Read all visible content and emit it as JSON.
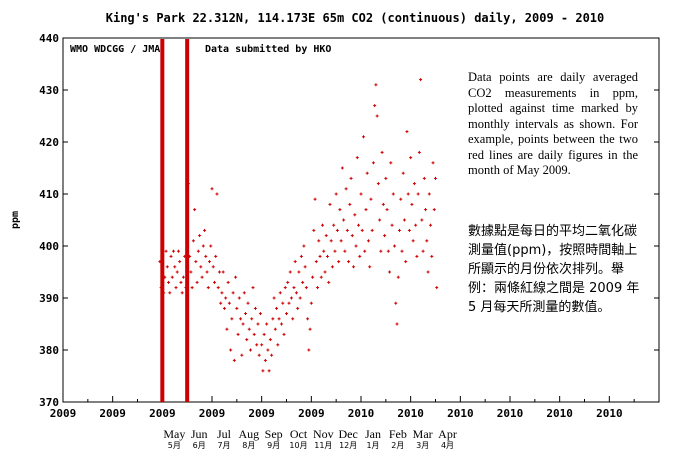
{
  "chart_data": {
    "type": "scatter",
    "title": "King's Park 22.312N, 114.173E 65m     CO2 (continuous)  daily, 2009 - 2010",
    "subtitle_left": "WMO WDCGG / JMA",
    "subtitle_right": "Data submitted by HKO",
    "ylabel": "ppm",
    "ylim": [
      370,
      440
    ],
    "yticks": [
      370,
      380,
      390,
      400,
      410,
      420,
      430,
      440
    ],
    "xlim": [
      "2009-01",
      "2011-01"
    ],
    "xtick_labels": [
      "2009",
      "2009",
      "2009",
      "2009",
      "2009",
      "2009",
      "2010",
      "2010",
      "2010",
      "2010",
      "2010",
      "2010"
    ],
    "month_labels": [
      {
        "en": "May",
        "zh": "5月",
        "t": 4.0
      },
      {
        "en": "Jun",
        "zh": "6月",
        "t": 5.0
      },
      {
        "en": "Jul",
        "zh": "7月",
        "t": 6.0
      },
      {
        "en": "Aug",
        "zh": "8月",
        "t": 7.0
      },
      {
        "en": "Sep",
        "zh": "9月",
        "t": 8.0
      },
      {
        "en": "Oct",
        "zh": "10月",
        "t": 9.0
      },
      {
        "en": "Nov",
        "zh": "11月",
        "t": 10.0
      },
      {
        "en": "Dec",
        "zh": "12月",
        "t": 11.0
      },
      {
        "en": "Jan",
        "zh": "1月",
        "t": 12.0
      },
      {
        "en": "Feb",
        "zh": "2月",
        "t": 13.0
      },
      {
        "en": "Mar",
        "zh": "3月",
        "t": 14.0
      },
      {
        "en": "Apr",
        "zh": "4月",
        "t": 15.0
      }
    ],
    "highlight_lines": [
      4.0,
      5.0
    ],
    "grid": false,
    "marker_color": "#cc0000",
    "line_color": "#cc0000",
    "series": [
      {
        "points": [
          [
            3.9,
            397
          ],
          [
            3.95,
            392
          ],
          [
            4.0,
            395
          ],
          [
            4.05,
            391
          ],
          [
            4.1,
            394
          ],
          [
            4.15,
            399
          ],
          [
            4.2,
            396
          ],
          [
            4.25,
            393
          ],
          [
            4.3,
            391
          ],
          [
            4.35,
            398
          ],
          [
            4.4,
            394
          ],
          [
            4.45,
            399
          ],
          [
            4.5,
            396
          ],
          [
            4.55,
            392
          ],
          [
            4.6,
            395
          ],
          [
            4.65,
            399
          ],
          [
            4.7,
            397
          ],
          [
            4.75,
            393
          ],
          [
            4.8,
            391
          ],
          [
            4.85,
            394
          ],
          [
            4.9,
            398
          ],
          [
            4.95,
            392
          ],
          [
            5.0,
            405
          ],
          [
            5.05,
            412
          ],
          [
            5.1,
            398
          ],
          [
            5.15,
            395
          ],
          [
            5.2,
            392
          ],
          [
            5.25,
            401
          ],
          [
            5.3,
            407
          ],
          [
            5.35,
            397
          ],
          [
            5.4,
            393
          ],
          [
            5.45,
            399
          ],
          [
            5.5,
            402
          ],
          [
            5.55,
            396
          ],
          [
            5.6,
            394
          ],
          [
            5.65,
            400
          ],
          [
            5.7,
            403
          ],
          [
            5.75,
            398
          ],
          [
            5.8,
            395
          ],
          [
            5.85,
            392
          ],
          [
            5.9,
            397
          ],
          [
            5.95,
            400
          ],
          [
            6.0,
            411
          ],
          [
            6.05,
            396
          ],
          [
            6.1,
            393
          ],
          [
            6.15,
            398
          ],
          [
            6.2,
            410
          ],
          [
            6.25,
            392
          ],
          [
            6.3,
            395
          ],
          [
            6.35,
            389
          ],
          [
            6.4,
            391
          ],
          [
            6.45,
            395
          ],
          [
            6.5,
            388
          ],
          [
            6.55,
            390
          ],
          [
            6.6,
            384
          ],
          [
            6.65,
            393
          ],
          [
            6.7,
            389
          ],
          [
            6.75,
            380
          ],
          [
            6.8,
            386
          ],
          [
            6.85,
            391
          ],
          [
            6.9,
            378
          ],
          [
            6.95,
            394
          ],
          [
            7.0,
            388
          ],
          [
            7.05,
            383
          ],
          [
            7.1,
            390
          ],
          [
            7.15,
            386
          ],
          [
            7.2,
            379
          ],
          [
            7.25,
            385
          ],
          [
            7.3,
            391
          ],
          [
            7.35,
            387
          ],
          [
            7.4,
            382
          ],
          [
            7.45,
            389
          ],
          [
            7.5,
            384
          ],
          [
            7.55,
            380
          ],
          [
            7.6,
            386
          ],
          [
            7.65,
            392
          ],
          [
            7.7,
            383
          ],
          [
            7.75,
            388
          ],
          [
            7.8,
            381
          ],
          [
            7.85,
            385
          ],
          [
            7.9,
            379
          ],
          [
            7.95,
            387
          ],
          [
            8.0,
            381
          ],
          [
            8.05,
            376
          ],
          [
            8.1,
            383
          ],
          [
            8.15,
            378
          ],
          [
            8.2,
            385
          ],
          [
            8.25,
            380
          ],
          [
            8.3,
            376
          ],
          [
            8.35,
            382
          ],
          [
            8.4,
            379
          ],
          [
            8.45,
            386
          ],
          [
            8.5,
            390
          ],
          [
            8.55,
            384
          ],
          [
            8.6,
            388
          ],
          [
            8.65,
            381
          ],
          [
            8.7,
            386
          ],
          [
            8.75,
            391
          ],
          [
            8.8,
            385
          ],
          [
            8.85,
            389
          ],
          [
            8.9,
            383
          ],
          [
            8.95,
            392
          ],
          [
            9.0,
            387
          ],
          [
            9.05,
            393
          ],
          [
            9.1,
            389
          ],
          [
            9.15,
            395
          ],
          [
            9.2,
            390
          ],
          [
            9.25,
            386
          ],
          [
            9.3,
            392
          ],
          [
            9.35,
            397
          ],
          [
            9.4,
            391
          ],
          [
            9.45,
            388
          ],
          [
            9.5,
            395
          ],
          [
            9.55,
            390
          ],
          [
            9.6,
            398
          ],
          [
            9.65,
            393
          ],
          [
            9.7,
            400
          ],
          [
            9.75,
            396
          ],
          [
            9.8,
            392
          ],
          [
            9.85,
            386
          ],
          [
            9.9,
            380
          ],
          [
            9.95,
            384
          ],
          [
            10.0,
            389
          ],
          [
            10.05,
            394
          ],
          [
            10.1,
            403
          ],
          [
            10.15,
            409
          ],
          [
            10.2,
            397
          ],
          [
            10.25,
            392
          ],
          [
            10.3,
            401
          ],
          [
            10.35,
            398
          ],
          [
            10.4,
            394
          ],
          [
            10.45,
            404
          ],
          [
            10.5,
            399
          ],
          [
            10.55,
            395
          ],
          [
            10.6,
            402
          ],
          [
            10.65,
            398
          ],
          [
            10.7,
            393
          ],
          [
            10.75,
            408
          ],
          [
            10.8,
            401
          ],
          [
            10.85,
            396
          ],
          [
            10.9,
            404
          ],
          [
            10.95,
            399
          ],
          [
            11.0,
            410
          ],
          [
            11.05,
            403
          ],
          [
            11.1,
            397
          ],
          [
            11.15,
            407
          ],
          [
            11.2,
            401
          ],
          [
            11.25,
            415
          ],
          [
            11.3,
            405
          ],
          [
            11.35,
            399
          ],
          [
            11.4,
            411
          ],
          [
            11.45,
            403
          ],
          [
            11.5,
            397
          ],
          [
            11.55,
            408
          ],
          [
            11.6,
            413
          ],
          [
            11.65,
            402
          ],
          [
            11.7,
            396
          ],
          [
            11.75,
            406
          ],
          [
            11.8,
            400
          ],
          [
            11.85,
            417
          ],
          [
            11.9,
            404
          ],
          [
            11.95,
            398
          ],
          [
            12.0,
            410
          ],
          [
            12.05,
            403
          ],
          [
            12.1,
            421
          ],
          [
            12.15,
            399
          ],
          [
            12.2,
            407
          ],
          [
            12.25,
            414
          ],
          [
            12.3,
            401
          ],
          [
            12.35,
            396
          ],
          [
            12.4,
            409
          ],
          [
            12.45,
            403
          ],
          [
            12.5,
            416
          ],
          [
            12.55,
            427
          ],
          [
            12.6,
            431
          ],
          [
            12.65,
            425
          ],
          [
            12.7,
            412
          ],
          [
            12.75,
            405
          ],
          [
            12.8,
            399
          ],
          [
            12.85,
            418
          ],
          [
            12.9,
            408
          ],
          [
            12.95,
            402
          ],
          [
            13.0,
            413
          ],
          [
            13.05,
            407
          ],
          [
            13.1,
            399
          ],
          [
            13.15,
            395
          ],
          [
            13.2,
            416
          ],
          [
            13.25,
            404
          ],
          [
            13.3,
            410
          ],
          [
            13.35,
            400
          ],
          [
            13.4,
            389
          ],
          [
            13.45,
            385
          ],
          [
            13.5,
            394
          ],
          [
            13.55,
            403
          ],
          [
            13.6,
            409
          ],
          [
            13.65,
            399
          ],
          [
            13.7,
            414
          ],
          [
            13.75,
            405
          ],
          [
            13.8,
            397
          ],
          [
            13.85,
            422
          ],
          [
            13.9,
            410
          ],
          [
            13.95,
            403
          ],
          [
            14.0,
            417
          ],
          [
            14.05,
            408
          ],
          [
            14.1,
            401
          ],
          [
            14.15,
            412
          ],
          [
            14.2,
            404
          ],
          [
            14.25,
            398
          ],
          [
            14.3,
            410
          ],
          [
            14.35,
            418
          ],
          [
            14.4,
            432
          ],
          [
            14.45,
            405
          ],
          [
            14.5,
            399
          ],
          [
            14.55,
            413
          ],
          [
            14.6,
            407
          ],
          [
            14.65,
            401
          ],
          [
            14.7,
            395
          ],
          [
            14.75,
            410
          ],
          [
            14.8,
            404
          ],
          [
            14.85,
            398
          ],
          [
            14.9,
            416
          ],
          [
            14.95,
            407
          ],
          [
            15.0,
            413
          ],
          [
            15.05,
            392
          ]
        ]
      }
    ]
  },
  "note_en": "Data points are daily averaged CO2 measurements in ppm, plotted against time marked by monthly intervals as shown. For example, points between the two red lines are daily figures in the month of May 2009.",
  "note_zh": "數據點是每日的平均二氧化碳測量值(ppm)，按照時間軸上所顯示的月份依次排列。舉例：兩條紅線之間是 2009 年 5 月每天所測量的數值。"
}
